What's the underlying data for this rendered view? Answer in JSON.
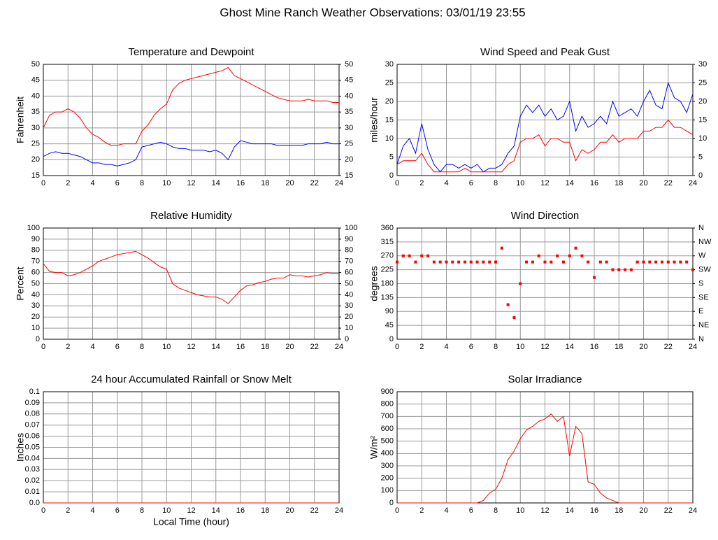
{
  "title": "Ghost Mine Ranch Weather Observations: 03/01/19 23:55",
  "chart_data": [
    {
      "type": "line",
      "title": "Temperature and Dewpoint",
      "ylabel": "Fahrenheit",
      "x": [
        0,
        0.5,
        1,
        1.5,
        2,
        2.5,
        3,
        3.5,
        4,
        4.5,
        5,
        5.5,
        6,
        6.5,
        7,
        7.5,
        8,
        8.5,
        9,
        9.5,
        10,
        10.5,
        11,
        11.5,
        12,
        12.5,
        13,
        13.5,
        14,
        14.5,
        15,
        15.5,
        16,
        16.5,
        17,
        17.5,
        18,
        18.5,
        19,
        19.5,
        20,
        20.5,
        21,
        21.5,
        22,
        22.5,
        23,
        23.5,
        24
      ],
      "series": [
        {
          "color": "#ff0000",
          "values": [
            30,
            34,
            35,
            35,
            36,
            35,
            33,
            30,
            28,
            27,
            25.5,
            24.5,
            24.5,
            25,
            25,
            25,
            29,
            31,
            34,
            36,
            37.5,
            42,
            44,
            45,
            45.5,
            46,
            46.5,
            47,
            47.5,
            48,
            49,
            46.5,
            45.5,
            44.5,
            43.5,
            42.5,
            41.5,
            40.5,
            39.5,
            39,
            38.5,
            38.5,
            38.5,
            39,
            38.5,
            38.5,
            38.5,
            38,
            38
          ]
        },
        {
          "color": "#0000ff",
          "values": [
            21,
            22,
            22.5,
            22,
            22,
            21.5,
            21,
            20,
            19,
            19,
            18.5,
            18.5,
            18,
            18.5,
            19,
            20,
            24,
            24.5,
            25,
            25.5,
            25,
            24,
            23.5,
            23.5,
            23,
            23,
            23,
            22.5,
            23,
            22,
            20,
            24,
            26,
            25.5,
            25,
            25,
            25,
            25,
            24.5,
            24.5,
            24.5,
            24.5,
            24.5,
            25,
            25,
            25,
            25.5,
            25,
            25
          ]
        }
      ],
      "xlim": [
        0,
        24
      ],
      "xticks": [
        0,
        2,
        4,
        6,
        8,
        10,
        12,
        14,
        16,
        18,
        20,
        22,
        24
      ],
      "ylim": [
        15,
        50
      ],
      "yticks": [
        15,
        20,
        25,
        30,
        35,
        40,
        45,
        50
      ],
      "y2lim": [
        15,
        50
      ],
      "y2ticks": [
        15,
        20,
        25,
        30,
        35,
        40,
        45,
        50
      ],
      "grid": true
    },
    {
      "type": "line",
      "title": "Wind Speed and Peak Gust",
      "ylabel": "miles/hour",
      "x": [
        0,
        0.5,
        1,
        1.5,
        2,
        2.5,
        3,
        3.5,
        4,
        4.5,
        5,
        5.5,
        6,
        6.5,
        7,
        7.5,
        8,
        8.5,
        9,
        9.5,
        10,
        10.5,
        11,
        11.5,
        12,
        12.5,
        13,
        13.5,
        14,
        14.5,
        15,
        15.5,
        16,
        16.5,
        17,
        17.5,
        18,
        18.5,
        19,
        19.5,
        20,
        20.5,
        21,
        21.5,
        22,
        22.5,
        23,
        23.5,
        24
      ],
      "series": [
        {
          "color": "#0000ff",
          "values": [
            3,
            8,
            10,
            6,
            14,
            7,
            3,
            1,
            3,
            3,
            2,
            3,
            2,
            3,
            1,
            2,
            2,
            3,
            6,
            8,
            16,
            19,
            17,
            19,
            16,
            18,
            15,
            16,
            20,
            12,
            16,
            13,
            14,
            16,
            14,
            20,
            16,
            17,
            18,
            16,
            20,
            23,
            19,
            18,
            25,
            21,
            20,
            17,
            22
          ]
        },
        {
          "color": "#ff0000",
          "values": [
            3,
            4,
            4,
            4,
            6,
            3,
            1,
            1,
            1,
            1,
            1,
            2,
            1,
            1,
            1,
            1,
            1,
            1,
            3,
            4,
            9,
            10,
            10,
            11,
            8,
            10,
            10,
            9,
            9,
            4,
            7,
            6,
            7,
            9,
            9,
            11,
            9,
            10,
            10,
            10,
            12,
            12,
            13,
            13,
            15,
            13,
            13,
            12,
            11
          ]
        }
      ],
      "xlim": [
        0,
        24
      ],
      "xticks": [
        0,
        2,
        4,
        6,
        8,
        10,
        12,
        14,
        16,
        18,
        20,
        22,
        24
      ],
      "ylim": [
        0,
        30
      ],
      "yticks": [
        0,
        5,
        10,
        15,
        20,
        25,
        30
      ],
      "y2lim": [
        0,
        30
      ],
      "y2ticks": [
        0,
        5,
        10,
        15,
        20,
        25,
        30
      ],
      "grid": true
    },
    {
      "type": "line",
      "title": "Relative Humidity",
      "ylabel": "Percent",
      "x": [
        0,
        0.5,
        1,
        1.5,
        2,
        2.5,
        3,
        3.5,
        4,
        4.5,
        5,
        5.5,
        6,
        6.5,
        7,
        7.5,
        8,
        8.5,
        9,
        9.5,
        10,
        10.5,
        11,
        11.5,
        12,
        12.5,
        13,
        13.5,
        14,
        14.5,
        15,
        15.5,
        16,
        16.5,
        17,
        17.5,
        18,
        18.5,
        19,
        19.5,
        20,
        20.5,
        21,
        21.5,
        22,
        22.5,
        23,
        23.5,
        24
      ],
      "series": [
        {
          "color": "#ff0000",
          "values": [
            68,
            61,
            60,
            60,
            57,
            58,
            60,
            63,
            66,
            70,
            72,
            74,
            76,
            77,
            78,
            79,
            76,
            73,
            69,
            65,
            63,
            50,
            46,
            44,
            42,
            40,
            39,
            38,
            38,
            36,
            32,
            38,
            44,
            48,
            49,
            51,
            52,
            54,
            55,
            55,
            58,
            57,
            57,
            56,
            57,
            58,
            60,
            59,
            59
          ]
        }
      ],
      "xlim": [
        0,
        24
      ],
      "xticks": [
        0,
        2,
        4,
        6,
        8,
        10,
        12,
        14,
        16,
        18,
        20,
        22,
        24
      ],
      "ylim": [
        0,
        100
      ],
      "yticks": [
        0,
        10,
        20,
        30,
        40,
        50,
        60,
        70,
        80,
        90,
        100
      ],
      "y2lim": [
        0,
        100
      ],
      "y2ticks": [
        0,
        10,
        20,
        30,
        40,
        50,
        60,
        70,
        80,
        90,
        100
      ],
      "grid": true
    },
    {
      "type": "scatter",
      "title": "Wind Direction",
      "ylabel": "degrees",
      "x": [
        0,
        0.5,
        1,
        1.5,
        2,
        2.5,
        3,
        3.5,
        4,
        4.5,
        5,
        5.5,
        6,
        6.5,
        7,
        7.5,
        8,
        8.5,
        9,
        9.5,
        10,
        10.5,
        11,
        11.5,
        12,
        12.5,
        13,
        13.5,
        14,
        14.5,
        15,
        15.5,
        16,
        16.5,
        17,
        17.5,
        18,
        18.5,
        19,
        19.5,
        20,
        20.5,
        21,
        21.5,
        22,
        22.5,
        23,
        23.5,
        24
      ],
      "series": [
        {
          "color": "#ff0000",
          "values": [
            250,
            270,
            270,
            250,
            270,
            270,
            250,
            250,
            250,
            250,
            250,
            250,
            250,
            250,
            250,
            250,
            250,
            295,
            112,
            70,
            180,
            250,
            250,
            270,
            250,
            250,
            270,
            250,
            270,
            295,
            270,
            250,
            200,
            250,
            250,
            225,
            225,
            225,
            225,
            250,
            250,
            250,
            250,
            250,
            250,
            250,
            250,
            250,
            225
          ]
        }
      ],
      "xlim": [
        0,
        24
      ],
      "xticks": [
        0,
        2,
        4,
        6,
        8,
        10,
        12,
        14,
        16,
        18,
        20,
        22,
        24
      ],
      "ylim": [
        0,
        360
      ],
      "yticks": [
        0,
        45,
        90,
        135,
        180,
        225,
        270,
        315,
        360
      ],
      "y2lim": [
        0,
        360
      ],
      "y2ticks": [
        {
          "value": 0,
          "label": "N"
        },
        {
          "value": 45,
          "label": "NE"
        },
        {
          "value": 90,
          "label": "E"
        },
        {
          "value": 135,
          "label": "SE"
        },
        {
          "value": 180,
          "label": "S"
        },
        {
          "value": 225,
          "label": "SW"
        },
        {
          "value": 270,
          "label": "W"
        },
        {
          "value": 315,
          "label": "NW"
        },
        {
          "value": 360,
          "label": "N"
        }
      ],
      "grid": true
    },
    {
      "type": "line",
      "title": "24 hour Accumulated Rainfall or Snow Melt",
      "ylabel": "Inches",
      "xlabel": "Local Time (hour)",
      "x": [
        0,
        24
      ],
      "series": [
        {
          "color": "#ff0000",
          "values": [
            0,
            0
          ]
        }
      ],
      "xlim": [
        0,
        24
      ],
      "xticks": [
        0,
        2,
        4,
        6,
        8,
        10,
        12,
        14,
        16,
        18,
        20,
        22,
        24
      ],
      "ylim": [
        0,
        0.1
      ],
      "yticks": [
        {
          "value": 0,
          "label": "0.0"
        },
        0.01,
        0.02,
        0.03,
        0.04,
        0.05,
        0.06,
        0.07,
        0.08,
        0.09,
        0.1
      ],
      "grid": true
    },
    {
      "type": "line",
      "title": "Solar Irradiance",
      "ylabel": "W/m²",
      "x": [
        0,
        0.5,
        1,
        1.5,
        2,
        2.5,
        3,
        3.5,
        4,
        4.5,
        5,
        5.5,
        6,
        6.5,
        7,
        7.5,
        8,
        8.5,
        9,
        9.5,
        10,
        10.5,
        11,
        11.5,
        12,
        12.5,
        13,
        13.5,
        14,
        14.5,
        15,
        15.5,
        16,
        16.5,
        17,
        17.5,
        18,
        18.5,
        19,
        19.5,
        20,
        20.5,
        21,
        21.5,
        22,
        22.5,
        23,
        23.5,
        24
      ],
      "series": [
        {
          "color": "#ff0000",
          "values": [
            0,
            0,
            0,
            0,
            0,
            0,
            0,
            0,
            0,
            0,
            0,
            0,
            0,
            0,
            20,
            80,
            110,
            200,
            350,
            420,
            520,
            590,
            620,
            660,
            680,
            720,
            660,
            700,
            380,
            620,
            560,
            170,
            150,
            80,
            40,
            20,
            0,
            0,
            0,
            0,
            0,
            0,
            0,
            0,
            0,
            0,
            0,
            0,
            0
          ]
        }
      ],
      "xlim": [
        0,
        24
      ],
      "xticks": [
        0,
        2,
        4,
        6,
        8,
        10,
        12,
        14,
        16,
        18,
        20,
        22,
        24
      ],
      "ylim": [
        0,
        900
      ],
      "yticks": [
        0,
        100,
        200,
        300,
        400,
        500,
        600,
        700,
        800,
        900
      ],
      "grid": true
    }
  ]
}
